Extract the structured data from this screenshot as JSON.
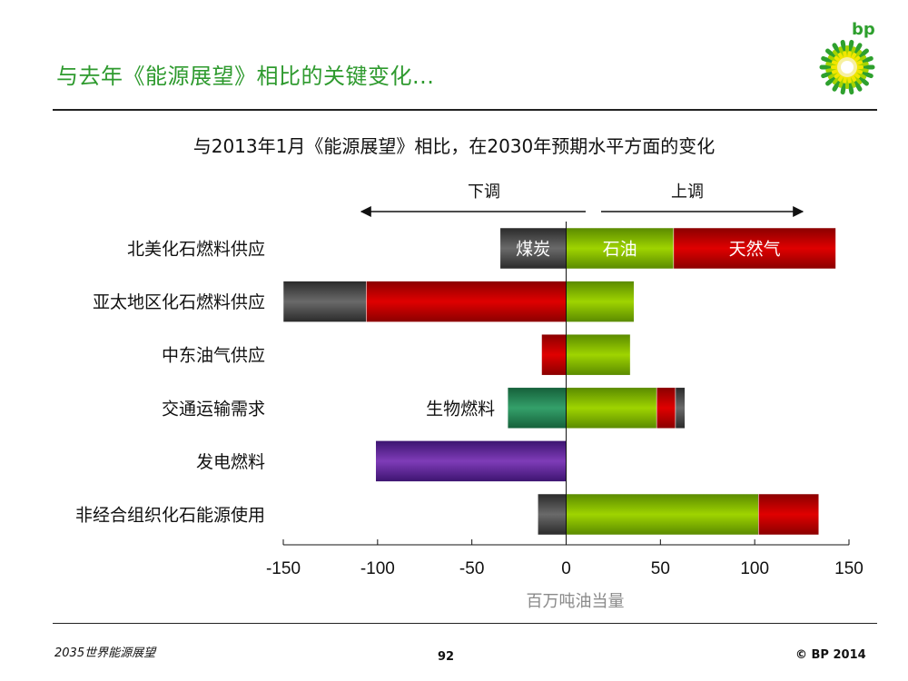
{
  "header": {
    "title": "与去年《能源展望》相比的关键变化..."
  },
  "brand": {
    "logo_text": "bp",
    "green": "#2ea02e",
    "yellow": "#f2e600"
  },
  "footer": {
    "left": "2035世界能源展望",
    "page": "92",
    "right": "© BP 2014"
  },
  "colors": {
    "coal": "#4a4a4a",
    "oil": "#7fb800",
    "gas": "#cc0000",
    "biofuel": "#2a8f5a",
    "power": "#6a2aa0"
  },
  "chart_data": {
    "type": "bar",
    "orientation": "horizontal",
    "stacked": true,
    "title": "与2013年1月《能源展望》相比，在2030年预期水平方面的变化",
    "xlabel": "百万吨油当量",
    "xlim": [
      -150,
      150
    ],
    "xticks": [
      "-150",
      "-100",
      "-50",
      "0",
      "50",
      "100",
      "150"
    ],
    "direction_labels": {
      "down": "下调",
      "up": "上调"
    },
    "categories": [
      "北美化石燃料供应",
      "亚太地区化石燃料供应",
      "中东油气供应",
      "交通运输需求",
      "发电燃料",
      "非经合组织化石能源使用"
    ],
    "segments": [
      [
        {
          "key": "coal",
          "start": -35,
          "end": 0,
          "label": "煤炭"
        },
        {
          "key": "oil",
          "start": 0,
          "end": 57,
          "label": "石油"
        },
        {
          "key": "gas",
          "start": 57,
          "end": 143,
          "label": "天然气"
        }
      ],
      [
        {
          "key": "coal",
          "start": -150,
          "end": -106
        },
        {
          "key": "gas",
          "start": -106,
          "end": 0
        },
        {
          "key": "oil",
          "start": 0,
          "end": 36
        }
      ],
      [
        {
          "key": "gas",
          "start": -13,
          "end": 0
        },
        {
          "key": "oil",
          "start": 0,
          "end": 34
        }
      ],
      [
        {
          "key": "biofuel",
          "start": -31,
          "end": 0,
          "label": "生物燃料",
          "label_position": "left"
        },
        {
          "key": "oil",
          "start": 0,
          "end": 48
        },
        {
          "key": "gas",
          "start": 48,
          "end": 58
        },
        {
          "key": "coal",
          "start": 58,
          "end": 63
        }
      ],
      [
        {
          "key": "power",
          "start": -101,
          "end": 0
        }
      ],
      [
        {
          "key": "coal",
          "start": -15,
          "end": 0
        },
        {
          "key": "oil",
          "start": 0,
          "end": 102
        },
        {
          "key": "gas",
          "start": 102,
          "end": 134
        }
      ]
    ]
  }
}
